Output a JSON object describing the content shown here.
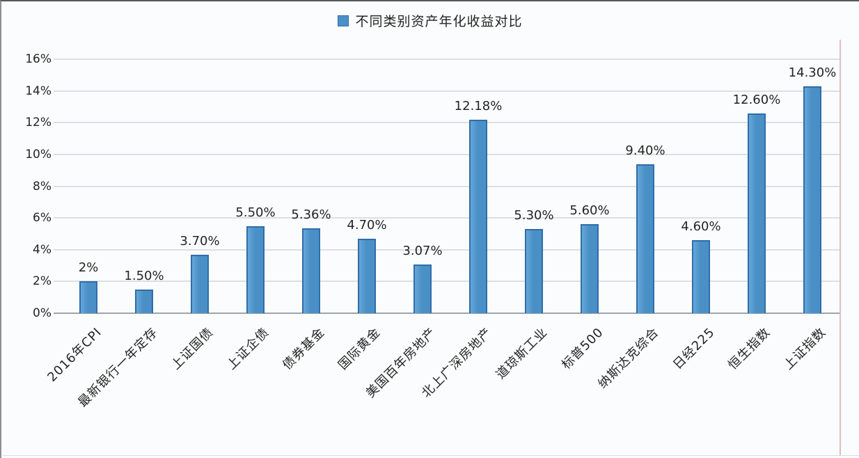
{
  "chart_data": {
    "type": "bar",
    "title": "不同类别资产年化收益对比",
    "categories": [
      "2016年CPI",
      "最新银行一年定存",
      "上证国债",
      "上证企债",
      "债券基金",
      "国际黄金",
      "美国百年房地产",
      "北上广深房地产",
      "道琼斯工业",
      "标普500",
      "纳斯达克综合",
      "日经225",
      "恒生指数",
      "上证指数"
    ],
    "values": [
      2,
      1.5,
      3.7,
      5.5,
      5.36,
      4.7,
      3.07,
      12.18,
      5.3,
      5.6,
      9.4,
      4.6,
      12.6,
      14.3
    ],
    "value_labels": [
      "2%",
      "1.50%",
      "3.70%",
      "5.50%",
      "5.36%",
      "4.70%",
      "3.07%",
      "12.18%",
      "5.30%",
      "5.60%",
      "9.40%",
      "4.60%",
      "12.60%",
      "14.30%"
    ],
    "y_tick_values": [
      16,
      14,
      12,
      10,
      8,
      6,
      4,
      2,
      0
    ],
    "y_tick_labels": [
      "16%",
      "14%",
      "12%",
      "10%",
      "8%",
      "6%",
      "4%",
      "2%",
      "0%"
    ],
    "ylim": [
      0,
      16
    ],
    "grid": true,
    "legend_position": "top-center",
    "colors": {
      "bar_fill": "#4a90c7",
      "bar_fill_light": "#66a7d8",
      "bar_edge": "#2f6da9",
      "gridline": "#dddfe4",
      "axis_line": "#9fa4aa",
      "text": "#242424",
      "background": "#fbfcfd"
    }
  }
}
